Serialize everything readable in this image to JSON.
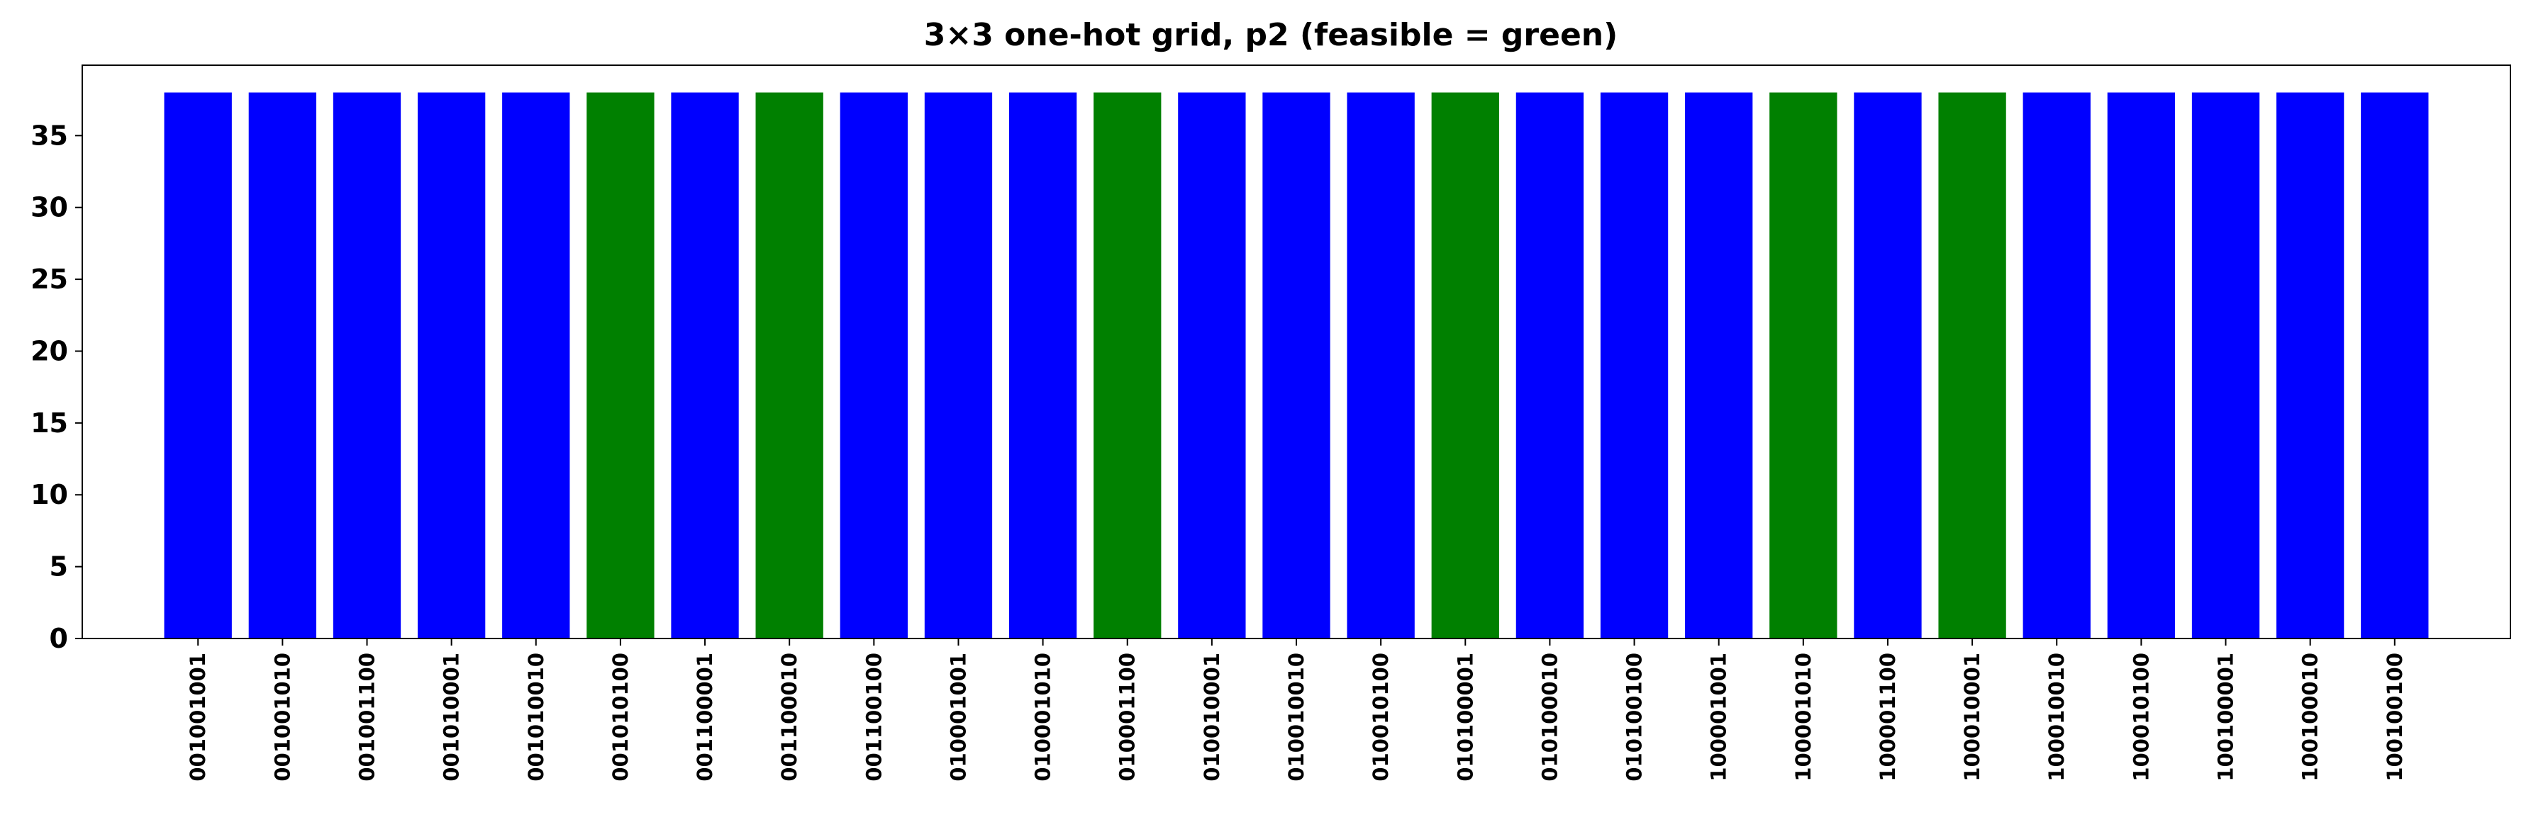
{
  "chart_data": {
    "type": "bar",
    "title": "3×3 one-hot grid, p2 (feasible = green)",
    "xlabel": "",
    "ylabel": "",
    "ylim": [
      0,
      39.9
    ],
    "yticks": [
      0,
      5,
      10,
      15,
      20,
      25,
      30,
      35
    ],
    "grid": false,
    "colors": {
      "infeasible": "#0000ff",
      "feasible": "#008000"
    },
    "categories": [
      "001001001",
      "001001010",
      "001001100",
      "001010001",
      "001010010",
      "001010100",
      "001100001",
      "001100010",
      "001100100",
      "010001001",
      "010001010",
      "010001100",
      "010010001",
      "010010010",
      "010010100",
      "010100001",
      "010100010",
      "010100100",
      "100001001",
      "100001010",
      "100001100",
      "100010001",
      "100010010",
      "100010100",
      "100100001",
      "100100010",
      "100100100"
    ],
    "values": [
      38,
      38,
      38,
      38,
      38,
      38,
      38,
      38,
      38,
      38,
      38,
      38,
      38,
      38,
      38,
      38,
      38,
      38,
      38,
      38,
      38,
      38,
      38,
      38,
      38,
      38,
      38
    ],
    "feasible": [
      false,
      false,
      false,
      false,
      false,
      true,
      false,
      true,
      false,
      false,
      false,
      true,
      false,
      false,
      false,
      true,
      false,
      false,
      false,
      true,
      false,
      true,
      false,
      false,
      false,
      false,
      false
    ]
  }
}
